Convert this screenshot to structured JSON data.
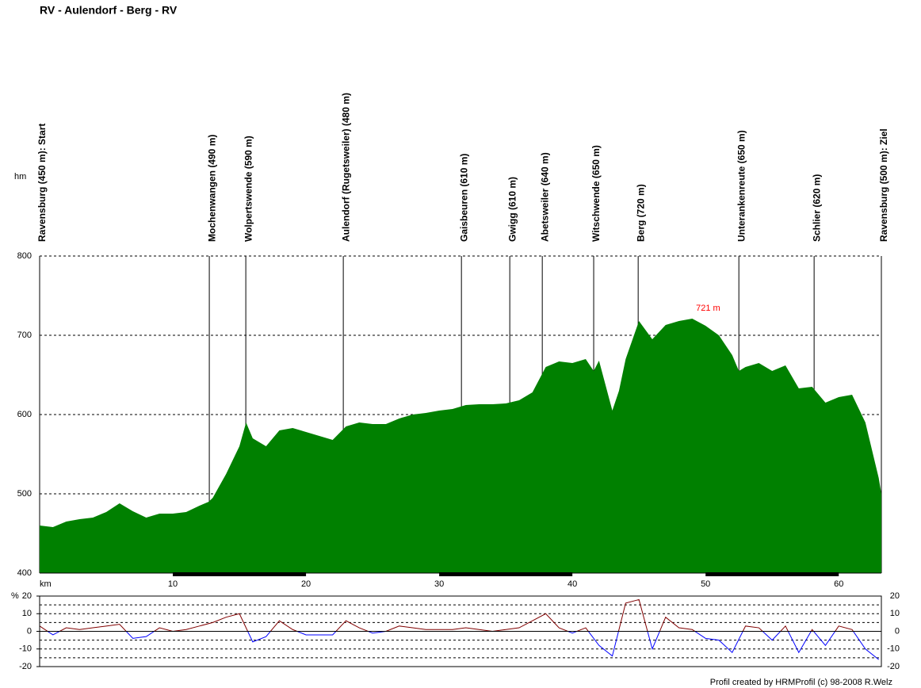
{
  "chart_data": [
    {
      "type": "area",
      "title": "RV - Aulendorf - Berg - RV",
      "ylabel": "hm",
      "xlabel": "km",
      "color": "#008000",
      "xlim": [
        0,
        63.2
      ],
      "ylim": [
        400,
        800
      ],
      "xticks": [
        10,
        20,
        30,
        40,
        50,
        60
      ],
      "yticks": [
        400,
        500,
        600,
        700,
        800
      ],
      "x": [
        0,
        1,
        2,
        3,
        4,
        5,
        6,
        7,
        8,
        9,
        10,
        11,
        12,
        12.7,
        13,
        14,
        15,
        15.5,
        16,
        17,
        18,
        19,
        20,
        21,
        22,
        23,
        24,
        25,
        26,
        27,
        28,
        29,
        30,
        31,
        32,
        33,
        34,
        35,
        36,
        37,
        38,
        39,
        40,
        41,
        41.6,
        42,
        43,
        43.5,
        44,
        45,
        46,
        47,
        48,
        49,
        50,
        51,
        52,
        52.5,
        53,
        54,
        55,
        56,
        57,
        58,
        59,
        60,
        61,
        62,
        63,
        63.2
      ],
      "values": [
        460,
        458,
        465,
        468,
        470,
        477,
        488,
        478,
        470,
        475,
        475,
        477,
        485,
        490,
        495,
        525,
        560,
        590,
        570,
        560,
        580,
        583,
        578,
        573,
        568,
        585,
        590,
        588,
        588,
        595,
        600,
        602,
        605,
        607,
        612,
        613,
        613,
        614,
        618,
        628,
        660,
        667,
        665,
        670,
        655,
        668,
        605,
        630,
        670,
        718,
        695,
        713,
        718,
        721,
        712,
        700,
        675,
        655,
        660,
        665,
        655,
        662,
        633,
        635,
        615,
        622,
        625,
        590,
        520,
        500
      ],
      "waypoints": [
        {
          "label": "Ravensburg (450 m): Start",
          "km": 0
        },
        {
          "label": "Mochenwangen (490 m)",
          "km": 12.74
        },
        {
          "label": "Wolpertswende (590 m)",
          "km": 15.48
        },
        {
          "label": "Aulendorf (Rugetsweiler) (480 m)",
          "km": 22.8
        },
        {
          "label": "Gaisbeuren (610 m)",
          "km": 31.67
        },
        {
          "label": "Gwigg (610 m)",
          "km": 35.3
        },
        {
          "label": "Abetsweiler (640 m)",
          "km": 37.74
        },
        {
          "label": "Witschwende (650 m)",
          "km": 41.6
        },
        {
          "label": "Berg (720 m)",
          "km": 44.94
        },
        {
          "label": "Unterankenreute (650 m)",
          "km": 52.5
        },
        {
          "label": "Schlier (620 m)",
          "km": 58.15
        },
        {
          "label": "Ravensburg (500 m): Ziel",
          "km": 63.2
        }
      ],
      "annotation": {
        "text": "721 m",
        "x": 49,
        "y": 721,
        "color": "#ff0000"
      }
    },
    {
      "type": "gradient",
      "ylabel": "%",
      "xlim": [
        0,
        63.2
      ],
      "ylim": [
        -20,
        20
      ],
      "yticks": [
        -20,
        -10,
        0,
        10,
        20
      ],
      "grid": [
        -15,
        -10,
        -5,
        5,
        10,
        15
      ],
      "up_color": "#800000",
      "down_color": "#0000ff",
      "x": [
        0,
        1,
        2,
        3,
        4,
        5,
        6,
        7,
        8,
        9,
        10,
        11,
        12,
        13,
        14,
        15,
        16,
        17,
        18,
        19,
        20,
        21,
        22,
        23,
        24,
        25,
        26,
        27,
        28,
        29,
        30,
        31,
        32,
        33,
        34,
        35,
        36,
        37,
        38,
        39,
        40,
        41,
        42,
        43,
        44,
        45,
        46,
        47,
        48,
        49,
        50,
        51,
        52,
        53,
        54,
        55,
        56,
        57,
        58,
        59,
        60,
        61,
        62,
        63
      ],
      "values": [
        3,
        -2,
        2,
        1,
        2,
        3,
        4,
        -4,
        -3,
        2,
        0,
        1,
        3,
        5,
        8,
        10,
        -6,
        -3,
        6,
        1,
        -2,
        -2,
        -2,
        6,
        2,
        -1,
        0,
        3,
        2,
        1,
        1,
        1,
        2,
        1,
        0,
        1,
        2,
        6,
        10,
        2,
        -1,
        2,
        -8,
        -14,
        16,
        18,
        -10,
        8,
        2,
        1,
        -4,
        -5,
        -12,
        3,
        2,
        -5,
        3,
        -12,
        1,
        -8,
        3,
        1,
        -10,
        -16
      ]
    }
  ],
  "footer": "Profil created by HRMProfil (c) 98-2008 R.Welz"
}
